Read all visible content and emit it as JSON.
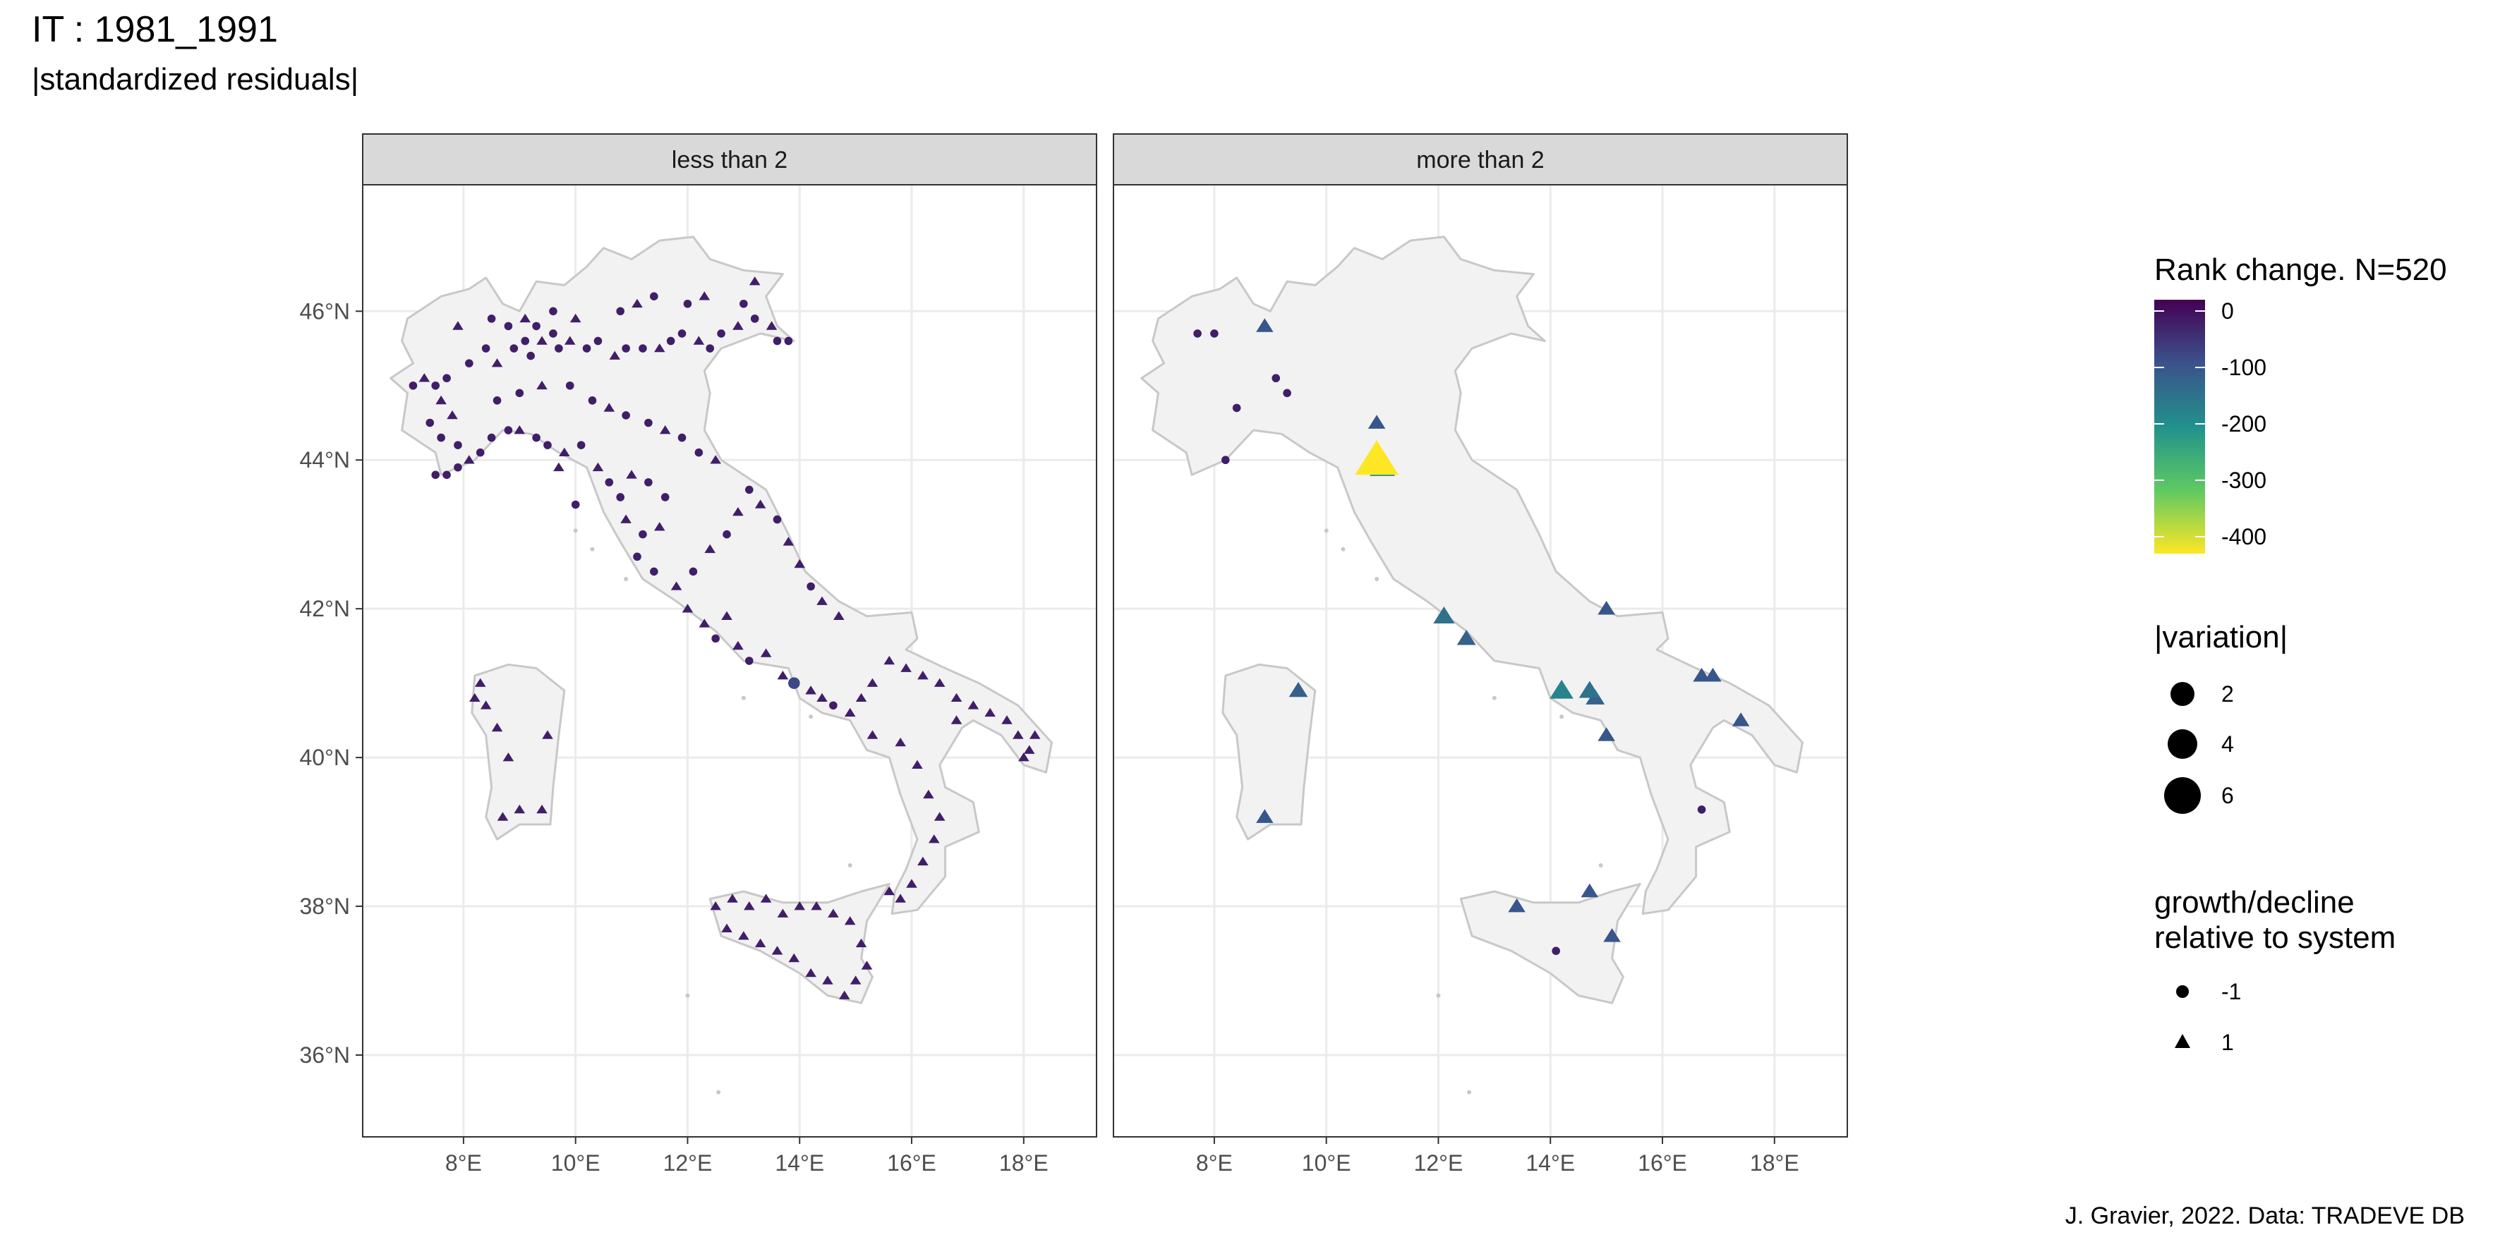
{
  "title": "IT : 1981_1991",
  "subtitle": "|standardized residuals|",
  "caption": "J. Gravier, 2022. Data: TRADEVE DB",
  "colors": {
    "land": "#f2f2f2",
    "coast": "#c8c8c8",
    "grid": "#ebebeb",
    "strip": "#d9d9d9",
    "panel_border": "#333333",
    "viridis": [
      "#440154",
      "#3b528b",
      "#21918c",
      "#5ec962",
      "#fde725"
    ]
  },
  "chart_data": {
    "type": "scatter",
    "map_region": "Italy",
    "facets": [
      "less than 2",
      "more than 2"
    ],
    "x_ticks": [
      "8°E",
      "10°E",
      "12°E",
      "14°E",
      "16°E",
      "18°E"
    ],
    "y_ticks": [
      "36°N",
      "38°N",
      "40°N",
      "42°N",
      "44°N",
      "46°N"
    ],
    "xlim": [
      6.2,
      19.3
    ],
    "ylim": [
      34.9,
      47.7
    ],
    "legend": {
      "color_title": "Rank change. N=520",
      "color_breaks": [
        "0",
        "-100",
        "-200",
        "-300",
        "-400"
      ],
      "size_title": "|variation|",
      "size_breaks": [
        "2",
        "4",
        "6"
      ],
      "shape_title_line1": "growth/decline",
      "shape_title_line2": "relative to system",
      "shape_breaks": [
        "-1",
        "1"
      ],
      "placement": "right"
    },
    "panels": [
      {
        "name": "less than 2",
        "points": [
          [
            7.1,
            45.0,
            -1,
            -20
          ],
          [
            7.3,
            45.1,
            1,
            -20
          ],
          [
            7.5,
            45.0,
            -1,
            -20
          ],
          [
            7.6,
            44.8,
            1,
            -20
          ],
          [
            7.7,
            45.1,
            -1,
            -20
          ],
          [
            7.4,
            44.5,
            -1,
            -20
          ],
          [
            7.8,
            44.6,
            1,
            -20
          ],
          [
            7.6,
            44.3,
            -1,
            -20
          ],
          [
            7.9,
            44.2,
            -1,
            -20
          ],
          [
            7.5,
            43.8,
            -1,
            -20
          ],
          [
            7.7,
            43.8,
            -1,
            -20
          ],
          [
            7.9,
            43.9,
            -1,
            -20
          ],
          [
            8.1,
            44.0,
            1,
            -20
          ],
          [
            8.3,
            44.1,
            -1,
            -20
          ],
          [
            8.5,
            44.3,
            -1,
            -20
          ],
          [
            8.8,
            44.4,
            -1,
            -20
          ],
          [
            9.0,
            44.4,
            1,
            -20
          ],
          [
            9.3,
            44.3,
            -1,
            -20
          ],
          [
            9.5,
            44.2,
            -1,
            -20
          ],
          [
            9.8,
            44.1,
            1,
            -20
          ],
          [
            8.1,
            45.3,
            -1,
            -20
          ],
          [
            8.4,
            45.5,
            -1,
            -20
          ],
          [
            8.6,
            45.3,
            1,
            -20
          ],
          [
            8.9,
            45.5,
            -1,
            -20
          ],
          [
            9.1,
            45.6,
            -1,
            -20
          ],
          [
            9.2,
            45.4,
            -1,
            -20
          ],
          [
            9.4,
            45.6,
            1,
            -20
          ],
          [
            9.6,
            45.7,
            -1,
            -20
          ],
          [
            9.7,
            45.5,
            -1,
            -20
          ],
          [
            9.9,
            45.6,
            1,
            -20
          ],
          [
            10.2,
            45.5,
            -1,
            -20
          ],
          [
            10.4,
            45.6,
            -1,
            -20
          ],
          [
            10.7,
            45.4,
            1,
            -20
          ],
          [
            10.9,
            45.5,
            -1,
            -20
          ],
          [
            11.2,
            45.5,
            -1,
            -20
          ],
          [
            11.5,
            45.5,
            1,
            -20
          ],
          [
            11.7,
            45.6,
            -1,
            -20
          ],
          [
            11.9,
            45.7,
            -1,
            -20
          ],
          [
            12.2,
            45.6,
            1,
            -20
          ],
          [
            12.4,
            45.5,
            -1,
            -20
          ],
          [
            12.6,
            45.7,
            -1,
            -20
          ],
          [
            12.9,
            45.8,
            1,
            -20
          ],
          [
            13.2,
            45.9,
            -1,
            -20
          ],
          [
            13.5,
            45.8,
            1,
            -20
          ],
          [
            13.8,
            45.6,
            -1,
            -20
          ],
          [
            8.5,
            45.9,
            -1,
            -20
          ],
          [
            8.8,
            45.8,
            -1,
            -20
          ],
          [
            9.1,
            45.9,
            1,
            -20
          ],
          [
            9.3,
            45.8,
            -1,
            -20
          ],
          [
            9.6,
            46.0,
            -1,
            -20
          ],
          [
            10.0,
            45.9,
            1,
            -20
          ],
          [
            10.8,
            46.0,
            -1,
            -20
          ],
          [
            11.1,
            46.1,
            1,
            -20
          ],
          [
            11.4,
            46.2,
            -1,
            -20
          ],
          [
            12.0,
            46.1,
            -1,
            -20
          ],
          [
            12.3,
            46.2,
            1,
            -20
          ],
          [
            13.0,
            46.1,
            -1,
            -20
          ],
          [
            13.2,
            46.4,
            1,
            -20
          ],
          [
            9.9,
            45.0,
            -1,
            -20
          ],
          [
            10.3,
            44.8,
            -1,
            -20
          ],
          [
            10.6,
            44.7,
            1,
            -20
          ],
          [
            10.9,
            44.6,
            -1,
            -20
          ],
          [
            11.3,
            44.5,
            -1,
            -20
          ],
          [
            11.6,
            44.4,
            1,
            -20
          ],
          [
            11.9,
            44.3,
            -1,
            -20
          ],
          [
            12.2,
            44.1,
            -1,
            -20
          ],
          [
            12.5,
            44.0,
            1,
            -20
          ],
          [
            8.6,
            44.8,
            -1,
            -20
          ],
          [
            9.0,
            44.9,
            -1,
            -20
          ],
          [
            9.4,
            45.0,
            1,
            -20
          ],
          [
            10.1,
            44.2,
            -1,
            -20
          ],
          [
            10.4,
            43.9,
            1,
            -20
          ],
          [
            10.6,
            43.7,
            -1,
            -20
          ],
          [
            10.8,
            43.5,
            -1,
            -20
          ],
          [
            11.0,
            43.8,
            1,
            -20
          ],
          [
            11.3,
            43.7,
            -1,
            -20
          ],
          [
            11.6,
            43.5,
            -1,
            -20
          ],
          [
            10.9,
            43.2,
            1,
            -20
          ],
          [
            11.2,
            43.0,
            -1,
            -20
          ],
          [
            11.5,
            43.1,
            1,
            -20
          ],
          [
            11.1,
            42.7,
            -1,
            -20
          ],
          [
            11.4,
            42.5,
            -1,
            -20
          ],
          [
            11.8,
            42.3,
            1,
            -20
          ],
          [
            12.1,
            42.5,
            -1,
            -20
          ],
          [
            12.4,
            42.8,
            1,
            -20
          ],
          [
            12.7,
            43.0,
            -1,
            -20
          ],
          [
            12.9,
            43.3,
            1,
            -20
          ],
          [
            13.1,
            43.6,
            -1,
            -20
          ],
          [
            13.3,
            43.4,
            1,
            -20
          ],
          [
            13.6,
            43.2,
            -1,
            -20
          ],
          [
            13.8,
            42.9,
            1,
            -20
          ],
          [
            14.0,
            42.6,
            1,
            -20
          ],
          [
            14.2,
            42.3,
            -1,
            -20
          ],
          [
            14.4,
            42.1,
            1,
            -20
          ],
          [
            14.7,
            41.9,
            1,
            -20
          ],
          [
            12.0,
            42.0,
            1,
            -20
          ],
          [
            12.3,
            41.8,
            1,
            -20
          ],
          [
            12.5,
            41.6,
            -1,
            -20
          ],
          [
            12.7,
            41.9,
            1,
            -20
          ],
          [
            12.9,
            41.5,
            1,
            -20
          ],
          [
            13.1,
            41.3,
            -1,
            -20
          ],
          [
            13.4,
            41.4,
            1,
            -20
          ],
          [
            13.7,
            41.1,
            1,
            -20
          ],
          [
            13.9,
            41.0,
            -1,
            -80
          ],
          [
            14.2,
            40.9,
            1,
            -20
          ],
          [
            14.4,
            40.8,
            1,
            -20
          ],
          [
            14.6,
            40.7,
            -1,
            -20
          ],
          [
            14.9,
            40.6,
            1,
            -20
          ],
          [
            15.1,
            40.8,
            1,
            -20
          ],
          [
            15.3,
            41.0,
            1,
            -20
          ],
          [
            15.6,
            41.3,
            1,
            -20
          ],
          [
            15.9,
            41.2,
            1,
            -20
          ],
          [
            16.2,
            41.1,
            1,
            -20
          ],
          [
            16.5,
            41.0,
            1,
            -20
          ],
          [
            16.8,
            40.8,
            1,
            -20
          ],
          [
            17.1,
            40.7,
            1,
            -20
          ],
          [
            17.4,
            40.6,
            1,
            -20
          ],
          [
            17.7,
            40.5,
            1,
            -20
          ],
          [
            17.9,
            40.3,
            1,
            -20
          ],
          [
            18.1,
            40.1,
            1,
            -20
          ],
          [
            18.2,
            40.3,
            1,
            -20
          ],
          [
            18.0,
            40.0,
            1,
            -20
          ],
          [
            15.8,
            40.2,
            1,
            -20
          ],
          [
            16.1,
            39.9,
            1,
            -20
          ],
          [
            16.3,
            39.5,
            1,
            -20
          ],
          [
            16.5,
            39.2,
            1,
            -20
          ],
          [
            16.4,
            38.9,
            1,
            -20
          ],
          [
            16.2,
            38.6,
            1,
            -20
          ],
          [
            16.0,
            38.3,
            1,
            -20
          ],
          [
            15.8,
            38.1,
            1,
            -20
          ],
          [
            15.6,
            38.2,
            1,
            -20
          ],
          [
            12.5,
            38.0,
            1,
            -20
          ],
          [
            12.8,
            38.1,
            1,
            -20
          ],
          [
            13.1,
            38.0,
            1,
            -20
          ],
          [
            13.4,
            38.1,
            1,
            -20
          ],
          [
            13.7,
            37.9,
            1,
            -20
          ],
          [
            14.0,
            38.0,
            1,
            -20
          ],
          [
            14.3,
            38.0,
            1,
            -20
          ],
          [
            14.6,
            37.9,
            1,
            -20
          ],
          [
            14.9,
            37.8,
            1,
            -20
          ],
          [
            15.1,
            37.5,
            1,
            -20
          ],
          [
            15.2,
            37.2,
            1,
            -20
          ],
          [
            15.0,
            37.0,
            1,
            -20
          ],
          [
            14.8,
            36.8,
            1,
            -20
          ],
          [
            14.5,
            37.0,
            1,
            -20
          ],
          [
            14.2,
            37.1,
            1,
            -20
          ],
          [
            13.9,
            37.3,
            1,
            -20
          ],
          [
            13.6,
            37.4,
            1,
            -20
          ],
          [
            13.3,
            37.5,
            1,
            -20
          ],
          [
            13.0,
            37.6,
            1,
            -20
          ],
          [
            12.7,
            37.7,
            1,
            -20
          ],
          [
            8.3,
            41.0,
            1,
            -20
          ],
          [
            8.4,
            40.7,
            1,
            -20
          ],
          [
            8.6,
            40.4,
            1,
            -20
          ],
          [
            8.8,
            40.0,
            1,
            -20
          ],
          [
            9.0,
            39.3,
            1,
            -20
          ],
          [
            9.4,
            39.3,
            1,
            -20
          ],
          [
            8.7,
            39.2,
            1,
            -20
          ],
          [
            9.5,
            40.3,
            1,
            -20
          ],
          [
            8.2,
            40.8,
            1,
            -20
          ],
          [
            7.9,
            45.8,
            1,
            -20
          ],
          [
            13.6,
            45.6,
            -1,
            -20
          ],
          [
            9.7,
            43.9,
            1,
            -20
          ],
          [
            10.0,
            43.4,
            -1,
            -20
          ],
          [
            15.3,
            40.3,
            1,
            -20
          ],
          [
            16.8,
            40.5,
            1,
            -20
          ]
        ]
      },
      {
        "name": "more than 2",
        "points": [
          [
            7.7,
            45.7,
            -1,
            -20
          ],
          [
            8.0,
            45.7,
            -1,
            -20
          ],
          [
            8.9,
            45.8,
            1,
            -100
          ],
          [
            9.1,
            45.1,
            -1,
            -20
          ],
          [
            9.3,
            44.9,
            -1,
            -20
          ],
          [
            8.4,
            44.7,
            -1,
            -20
          ],
          [
            8.2,
            44.0,
            -1,
            -20
          ],
          [
            10.9,
            44.5,
            1,
            -100
          ],
          [
            10.9,
            44.0,
            1,
            -430
          ],
          [
            11.0,
            43.9,
            1,
            -200
          ],
          [
            12.1,
            41.9,
            1,
            -150
          ],
          [
            12.5,
            41.6,
            1,
            -120
          ],
          [
            14.2,
            40.9,
            1,
            -180
          ],
          [
            14.7,
            40.9,
            1,
            -150
          ],
          [
            14.8,
            40.8,
            1,
            -120
          ],
          [
            15.0,
            40.3,
            1,
            -100
          ],
          [
            15.0,
            42.0,
            1,
            -100
          ],
          [
            16.7,
            41.1,
            1,
            -100
          ],
          [
            16.9,
            41.1,
            1,
            -100
          ],
          [
            17.4,
            40.5,
            1,
            -100
          ],
          [
            16.7,
            39.3,
            -1,
            -20
          ],
          [
            9.5,
            40.9,
            1,
            -120
          ],
          [
            8.9,
            39.2,
            1,
            -100
          ],
          [
            14.7,
            38.2,
            1,
            -100
          ],
          [
            13.4,
            38.0,
            1,
            -100
          ],
          [
            14.1,
            37.4,
            -1,
            -20
          ],
          [
            15.1,
            37.6,
            1,
            -100
          ]
        ]
      }
    ]
  }
}
